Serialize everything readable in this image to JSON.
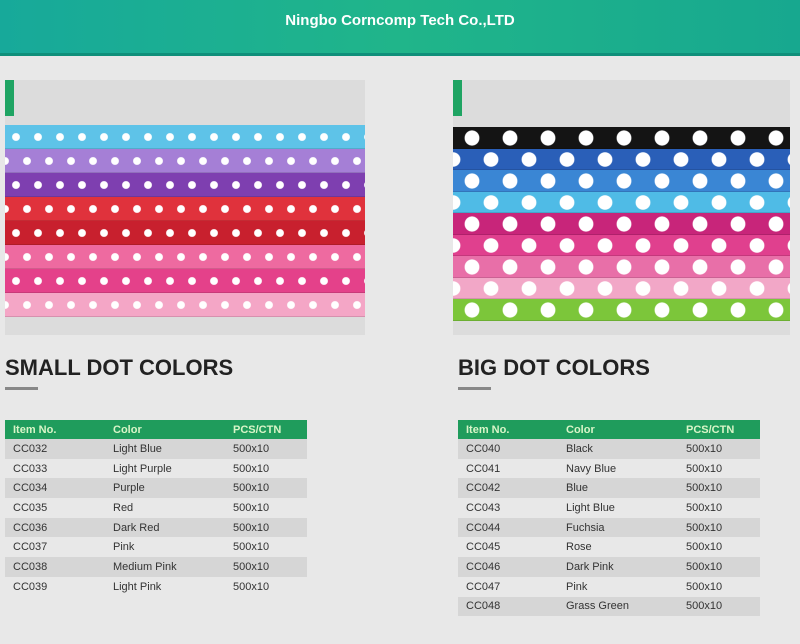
{
  "header": {
    "title": "Ningbo Corncomp Tech Co.,LTD",
    "color": "#1fb08e"
  },
  "sections": [
    {
      "title": "SMALL DOT COLORS",
      "dot_size": "small",
      "columns": [
        "Item No.",
        "Color",
        "PCS/CTN"
      ],
      "rows": [
        {
          "item": "CC032",
          "color": "Light Blue",
          "pcs": "500x10",
          "hex": "#5ec3e8"
        },
        {
          "item": "CC033",
          "color": "Light Purple",
          "pcs": "500x10",
          "hex": "#a57fd6"
        },
        {
          "item": "CC034",
          "color": "Purple",
          "pcs": "500x10",
          "hex": "#7e3fb0"
        },
        {
          "item": "CC035",
          "color": "Red",
          "pcs": "500x10",
          "hex": "#e0323c"
        },
        {
          "item": "CC036",
          "color": "Dark Red",
          "pcs": "500x10",
          "hex": "#c8202e"
        },
        {
          "item": "CC037",
          "color": "Pink",
          "pcs": "500x10",
          "hex": "#ee6aa0"
        },
        {
          "item": "CC038",
          "color": "Medium Pink",
          "pcs": "500x10",
          "hex": "#e4418a"
        },
        {
          "item": "CC039",
          "color": "Light Pink",
          "pcs": "500x10",
          "hex": "#f4a6c6"
        }
      ]
    },
    {
      "title": "BIG DOT COLORS",
      "dot_size": "big",
      "columns": [
        "Item No.",
        "Color",
        "PCS/CTN"
      ],
      "rows": [
        {
          "item": "CC040",
          "color": "Black",
          "pcs": "500x10",
          "hex": "#141414"
        },
        {
          "item": "CC041",
          "color": "Navy Blue",
          "pcs": "500x10",
          "hex": "#2a5fb8"
        },
        {
          "item": "CC042",
          "color": "Blue",
          "pcs": "500x10",
          "hex": "#3a86d4"
        },
        {
          "item": "CC043",
          "color": "Light Blue",
          "pcs": "500x10",
          "hex": "#4fbbe6"
        },
        {
          "item": "CC044",
          "color": "Fuchsia",
          "pcs": "500x10",
          "hex": "#c8257a"
        },
        {
          "item": "CC045",
          "color": "Rose",
          "pcs": "500x10",
          "hex": "#e0408e"
        },
        {
          "item": "CC046",
          "color": "Dark Pink",
          "pcs": "500x10",
          "hex": "#e86fa8"
        },
        {
          "item": "CC047",
          "color": "Pink",
          "pcs": "500x10",
          "hex": "#f2a7c7"
        },
        {
          "item": "CC048",
          "color": "Grass Green",
          "pcs": "500x10",
          "hex": "#7cc63a"
        }
      ]
    }
  ]
}
